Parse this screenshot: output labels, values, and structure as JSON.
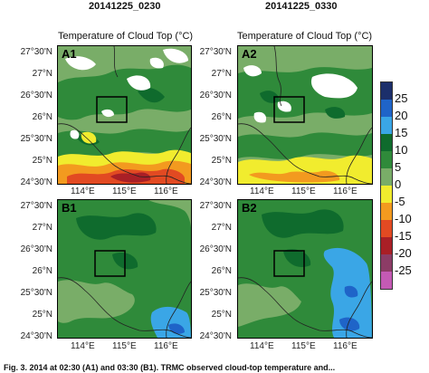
{
  "columns": [
    {
      "time_title": "20141225_0230",
      "subtitle": "Temperature of Cloud Top  (°C)"
    },
    {
      "time_title": "20141225_0330",
      "subtitle": "Temperature of Cloud Top  (°C)"
    }
  ],
  "panels": [
    {
      "label": "A1"
    },
    {
      "label": "A2"
    },
    {
      "label": "B1"
    },
    {
      "label": "B2"
    }
  ],
  "lat_labels": [
    "27°30'N",
    "27°N",
    "26°30'N",
    "26°N",
    "25°30'N",
    "25°N",
    "24°30'N"
  ],
  "lon_labels": [
    "114°E",
    "115°E",
    "116°E"
  ],
  "colorbar": {
    "labels": [
      "25",
      "20",
      "15",
      "10",
      "5",
      "0",
      "-5",
      "-10",
      "-15",
      "-20",
      "-25"
    ],
    "colors": [
      "#1c2f6b",
      "#1f64c8",
      "#3aa6e6",
      "#0f6b2d",
      "#2f8a3a",
      "#79ad68",
      "#f1ec2e",
      "#f39a1f",
      "#e24a22",
      "#a91f26",
      "#8c3c66",
      "#c45ab4"
    ]
  },
  "caption": "Fig. 3. 2014 at 02:30 (A1) and 03:30 (B1). TRMC observed cloud-top temperature and..."
}
